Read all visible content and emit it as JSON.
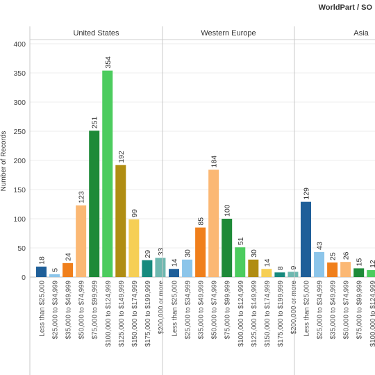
{
  "header": {
    "title": "WorldPart / SO"
  },
  "chart_data": {
    "type": "bar",
    "ylabel": "Number of Records",
    "ylim": [
      0,
      400
    ],
    "yticks": [
      0,
      50,
      100,
      150,
      200,
      250,
      300,
      350,
      400
    ],
    "grid": true,
    "panels": [
      {
        "name": "United States",
        "categories": [
          "Less than $25,000",
          "$25,000 to $34,999",
          "$35,000 to $49,999",
          "$50,000 to $74,999",
          "$75,000 to $99,999",
          "$100,000 to $124,999",
          "$125,000 to $149,999",
          "$150,000 to $174,999",
          "$175,000 to $199,999",
          "$200,000 or more"
        ],
        "values": [
          18,
          5,
          24,
          123,
          251,
          354,
          192,
          99,
          29,
          33
        ]
      },
      {
        "name": "Western Europe",
        "categories": [
          "Less than $25,000",
          "$25,000 to $34,999",
          "$35,000 to $49,999",
          "$50,000 to $74,999",
          "$75,000 to $99,999",
          "$100,000 to $124,999",
          "$125,000 to $149,999",
          "$150,000 to $174,999",
          "$175,000 to $199,999",
          "$200,000 or more"
        ],
        "values": [
          14,
          30,
          85,
          184,
          100,
          51,
          30,
          14,
          8,
          9
        ]
      },
      {
        "name": "Asia",
        "categories": [
          "Less than $25,000",
          "$25,000 to $34,999",
          "$35,000 to $49,999",
          "$50,000 to $74,999",
          "$75,000 to $99,999",
          "$100,000 to $124,999"
        ],
        "values": [
          129,
          43,
          25,
          26,
          15,
          12
        ]
      }
    ],
    "category_colors": [
      "#1f5f99",
      "#8cc5ea",
      "#f07f1b",
      "#fbb874",
      "#1e8a38",
      "#4ccc5e",
      "#b08d12",
      "#f6cf55",
      "#178a7e",
      "#6fb8b0"
    ]
  }
}
